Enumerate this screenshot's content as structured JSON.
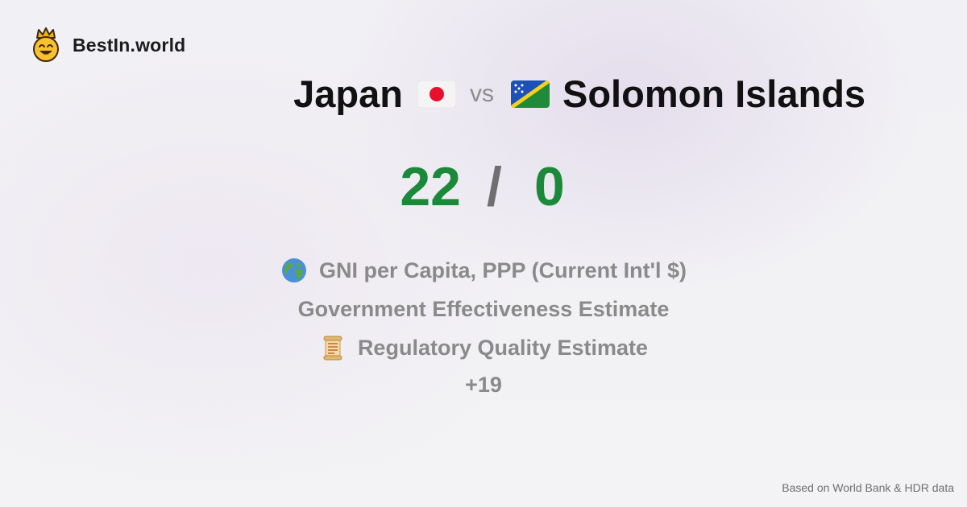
{
  "brand": {
    "name": "BestIn.world",
    "logo_icon": "crowned-smiley-icon"
  },
  "comparison": {
    "country_a": {
      "name": "Japan",
      "flag_icon": "japan-flag-icon"
    },
    "separator": "vs",
    "country_b": {
      "name": "Solomon Islands",
      "flag_icon": "solomon-islands-flag-icon"
    }
  },
  "score": {
    "a": "22",
    "separator": "/",
    "b": "0",
    "color": "#1a8a3a"
  },
  "metrics": [
    {
      "icon": "globe-icon",
      "label": "GNI per Capita, PPP (Current Int'l $)"
    },
    {
      "icon": "",
      "label": "Government Effectiveness Estimate"
    },
    {
      "icon": "scroll-icon",
      "label": "Regulatory Quality Estimate"
    }
  ],
  "more_count": "+19",
  "footer": {
    "source": "Based on World Bank & HDR data"
  }
}
